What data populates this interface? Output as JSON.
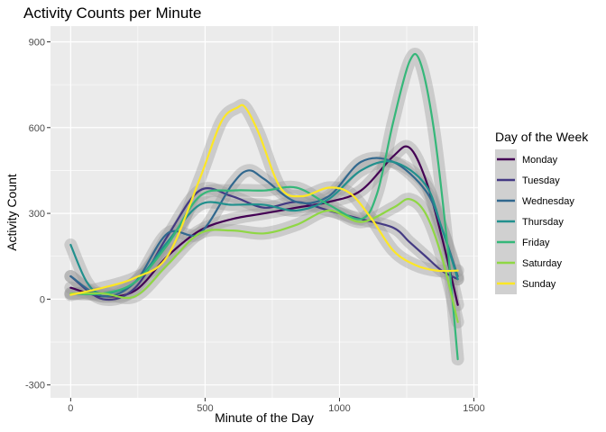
{
  "chart_data": {
    "type": "line",
    "title": "Activity Counts per Minute",
    "xlabel": "Minute of the Day",
    "ylabel": "Activity Count",
    "xlim": [
      -75,
      1515
    ],
    "ylim": [
      -345,
      955
    ],
    "xticks": [
      0,
      500,
      1000,
      1500
    ],
    "yticks": [
      -300,
      0,
      300,
      600,
      900
    ],
    "xtick_labels": [
      "0",
      "500",
      "1000",
      "1500"
    ],
    "ytick_labels": [
      "-300",
      "0",
      "300",
      "600",
      "900"
    ],
    "grid": true,
    "legend_title": "Day of the Week",
    "legend_position": "right",
    "series": [
      {
        "name": "Monday",
        "color": "#440154",
        "x": [
          0,
          120,
          240,
          360,
          480,
          600,
          720,
          840,
          960,
          1080,
          1200,
          1260,
          1320,
          1380,
          1440
        ],
        "y": [
          40,
          10,
          30,
          150,
          240,
          280,
          300,
          320,
          340,
          380,
          500,
          530,
          420,
          220,
          -20
        ]
      },
      {
        "name": "Tuesday",
        "color": "#443a83",
        "x": [
          0,
          120,
          240,
          360,
          480,
          600,
          720,
          840,
          960,
          1080,
          1200,
          1260,
          1320,
          1380,
          1440
        ],
        "y": [
          80,
          0,
          40,
          220,
          380,
          360,
          320,
          340,
          310,
          280,
          250,
          200,
          150,
          100,
          70
        ]
      },
      {
        "name": "Wednesday",
        "color": "#31688e",
        "x": [
          0,
          120,
          240,
          360,
          480,
          600,
          660,
          720,
          840,
          960,
          1080,
          1200,
          1320,
          1380,
          1440
        ],
        "y": [
          80,
          10,
          60,
          230,
          230,
          400,
          450,
          420,
          340,
          360,
          480,
          480,
          380,
          250,
          80
        ]
      },
      {
        "name": "Thursday",
        "color": "#21908d",
        "x": [
          0,
          60,
          120,
          240,
          360,
          480,
          600,
          720,
          840,
          960,
          1080,
          1200,
          1320,
          1380,
          1440
        ],
        "y": [
          190,
          60,
          20,
          60,
          200,
          330,
          330,
          330,
          310,
          350,
          450,
          480,
          400,
          250,
          70
        ]
      },
      {
        "name": "Friday",
        "color": "#35b779",
        "x": [
          0,
          120,
          240,
          360,
          480,
          600,
          720,
          840,
          960,
          1080,
          1140,
          1200,
          1260,
          1300,
          1350,
          1400,
          1440
        ],
        "y": [
          20,
          20,
          60,
          190,
          360,
          380,
          380,
          390,
          330,
          280,
          370,
          620,
          830,
          830,
          600,
          200,
          -210
        ]
      },
      {
        "name": "Saturday",
        "color": "#8fd744",
        "x": [
          0,
          120,
          240,
          360,
          480,
          600,
          720,
          840,
          960,
          1080,
          1200,
          1260,
          1320,
          1380,
          1440
        ],
        "y": [
          20,
          20,
          10,
          120,
          230,
          240,
          230,
          260,
          310,
          270,
          320,
          350,
          300,
          150,
          -80
        ]
      },
      {
        "name": "Sunday",
        "color": "#fde725",
        "x": [
          0,
          120,
          240,
          360,
          480,
          560,
          620,
          650,
          700,
          780,
          860,
          960,
          1040,
          1120,
          1200,
          1280,
          1360,
          1440
        ],
        "y": [
          15,
          40,
          75,
          150,
          420,
          620,
          670,
          670,
          580,
          390,
          360,
          390,
          370,
          280,
          170,
          120,
          100,
          100
        ]
      }
    ]
  }
}
